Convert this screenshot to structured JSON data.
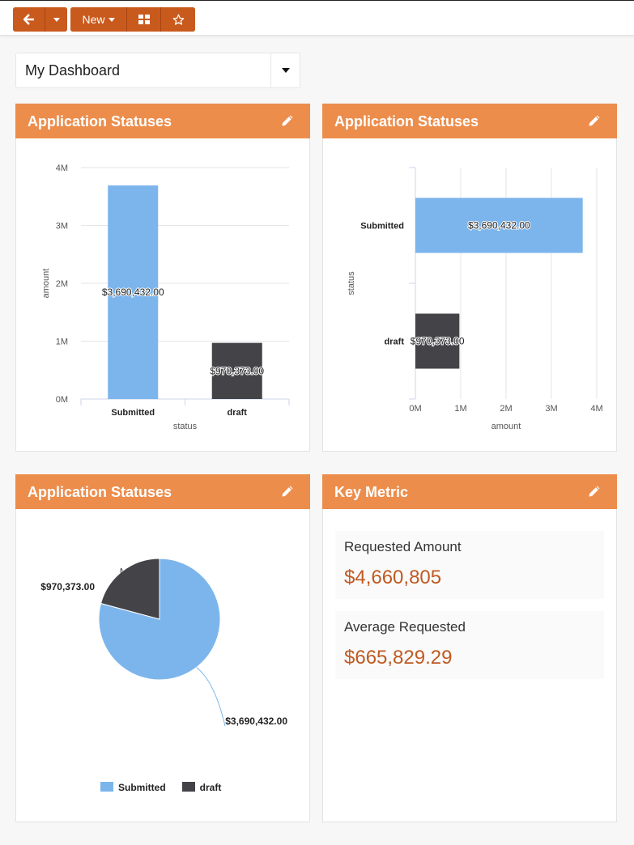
{
  "toolbar": {
    "new_label": "New"
  },
  "dashboard": {
    "title": "My Dashboard"
  },
  "colors": {
    "submitted": "#7cb5ec",
    "draft": "#434348",
    "accent": "#ec8d4c",
    "button": "#c95a1d",
    "metric_value": "#c05a22"
  },
  "widgets": {
    "column": {
      "title": "Application Statuses"
    },
    "bar": {
      "title": "Application Statuses"
    },
    "pie": {
      "title": "Application Statuses"
    },
    "metric": {
      "title": "Key Metric",
      "items": [
        {
          "label": "Requested Amount",
          "value": "$4,660,805"
        },
        {
          "label": "Average Requested",
          "value": "$665,829.29"
        }
      ]
    }
  },
  "chart_data": [
    {
      "type": "bar",
      "orientation": "vertical",
      "categories": [
        "Submitted",
        "draft"
      ],
      "values": [
        3690432,
        970373
      ],
      "data_labels": [
        "$3,690,432.00",
        "$970,373.00"
      ],
      "xlabel": "status",
      "ylabel": "amount",
      "ylim": [
        0,
        4000000
      ],
      "ticks": [
        "0M",
        "1M",
        "2M",
        "3M",
        "4M"
      ]
    },
    {
      "type": "bar",
      "orientation": "horizontal",
      "categories": [
        "Submitted",
        "draft"
      ],
      "values": [
        3690432,
        970373
      ],
      "data_labels": [
        "$3,690,432.00",
        "$970,373.00"
      ],
      "xlabel": "amount",
      "ylabel": "status",
      "xlim": [
        0,
        4000000
      ],
      "ticks": [
        "0M",
        "1M",
        "2M",
        "3M",
        "4M"
      ]
    },
    {
      "type": "pie",
      "categories": [
        "Submitted",
        "draft"
      ],
      "values": [
        3690432,
        970373
      ],
      "data_labels": [
        "$3,690,432.00",
        "$970,373.00"
      ],
      "legend": [
        "Submitted",
        "draft"
      ]
    }
  ]
}
